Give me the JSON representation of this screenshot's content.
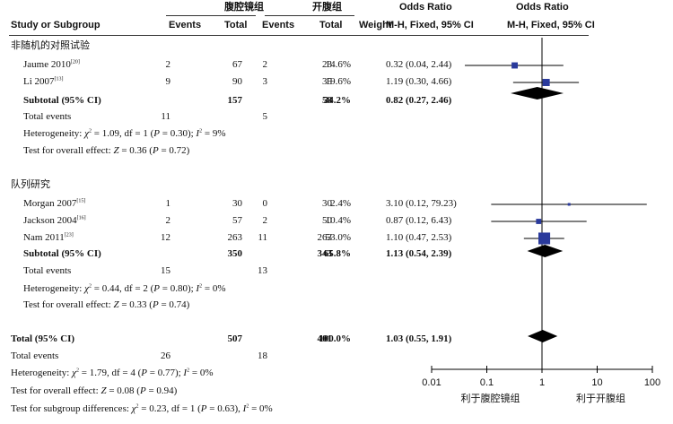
{
  "header": {
    "group1": "腹腔镜组",
    "group2": "开腹组",
    "or_top_left": "Odds Ratio",
    "or_top_right": "Odds Ratio",
    "study_col": "Study or Subgroup",
    "events1": "Events",
    "total1": "Total",
    "events2": "Events",
    "total2": "Total",
    "weight": "Weight",
    "method_left": "M-H, Fixed, 95% CI",
    "method_right": "M-H, Fixed, 95% CI"
  },
  "colors": {
    "marker": "#2a3a9c",
    "diamond": "#000000",
    "line": "#000000"
  },
  "chart_data": {
    "type": "forest",
    "x_scale": "log",
    "xlim": [
      0.01,
      100
    ],
    "x_ticks": [
      "0.01",
      "0.1",
      "1",
      "10",
      "100"
    ],
    "x_tick_values": [
      0.01,
      0.1,
      1,
      10,
      100
    ],
    "favors_left": "利于腹腔镜组",
    "favors_right": "利于开腹组",
    "subgroups": [
      {
        "name": "非随机的对照试验",
        "studies": [
          {
            "study": "Jaume 2010",
            "ref": "[20]",
            "events1": "2",
            "total1": "67",
            "events2": "2",
            "total2": "23",
            "weight": "14.6%",
            "ci_text": "0.32 (0.04, 2.44)",
            "or": 0.32,
            "lo": 0.04,
            "hi": 2.44,
            "w": 14.6
          },
          {
            "study": "Li 2007",
            "ref": "[13]",
            "events1": "9",
            "total1": "90",
            "events2": "3",
            "total2": "35",
            "weight": "19.6%",
            "ci_text": "1.19 (0.30, 4.66)",
            "or": 1.19,
            "lo": 0.3,
            "hi": 4.66,
            "w": 19.6
          }
        ],
        "subtotal": {
          "label": "Subtotal (95% CI)",
          "total1": "157",
          "total2": "58",
          "weight": "34.2%",
          "ci_text": "0.82 (0.27, 2.46)",
          "or": 0.82,
          "lo": 0.27,
          "hi": 2.46
        },
        "total_events": {
          "label": "Total events",
          "events1": "11",
          "events2": "5"
        },
        "heterogeneity": {
          "chi2": "1.09",
          "df": "1",
          "p": "0.30",
          "i2": "9%"
        },
        "overall": {
          "z": "0.36",
          "p": "0.72"
        }
      },
      {
        "name": "队列研究",
        "studies": [
          {
            "study": "Morgan 2007",
            "ref": "[15]",
            "events1": "1",
            "total1": "30",
            "events2": "0",
            "total2": "30",
            "weight": "2.4%",
            "ci_text": "3.10 (0.12, 79.23)",
            "or": 3.1,
            "lo": 0.12,
            "hi": 79.23,
            "w": 2.4
          },
          {
            "study": "Jackson 2004",
            "ref": "[16]",
            "events1": "2",
            "total1": "57",
            "events2": "2",
            "total2": "50",
            "weight": "10.4%",
            "ci_text": "0.87 (0.12, 6.43)",
            "or": 0.87,
            "lo": 0.12,
            "hi": 6.43,
            "w": 10.4
          },
          {
            "study": "Nam 2011",
            "ref": "[23]",
            "events1": "12",
            "total1": "263",
            "events2": "11",
            "total2": "263",
            "weight": "53.0%",
            "ci_text": "1.10 (0.47, 2.53)",
            "or": 1.1,
            "lo": 0.47,
            "hi": 2.53,
            "w": 53.0
          }
        ],
        "subtotal": {
          "label": "Subtotal (95% CI)",
          "total1": "350",
          "total2": "343",
          "weight": "65.8%",
          "ci_text": "1.13 (0.54, 2.39)",
          "or": 1.13,
          "lo": 0.54,
          "hi": 2.39
        },
        "total_events": {
          "label": "Total events",
          "events1": "15",
          "events2": "13"
        },
        "heterogeneity": {
          "chi2": "0.44",
          "df": "2",
          "p": "0.80",
          "i2": "0%"
        },
        "overall": {
          "z": "0.33",
          "p": "0.74"
        }
      }
    ],
    "total": {
      "label": "Total (95% CI)",
      "total1": "507",
      "total2": "401",
      "weight": "100.0%",
      "ci_text": "1.03 (0.55, 1.91)",
      "or": 1.03,
      "lo": 0.55,
      "hi": 1.91
    },
    "total_events": {
      "label": "Total events",
      "events1": "26",
      "events2": "18"
    },
    "heterogeneity": {
      "chi2": "1.79",
      "df": "4",
      "p": "0.77",
      "i2": "0%"
    },
    "overall": {
      "z": "0.08",
      "p": "0.94"
    },
    "subgroup_diff": {
      "chi2": "0.23",
      "df": "1",
      "p": "0.63",
      "i2": "0%"
    }
  }
}
